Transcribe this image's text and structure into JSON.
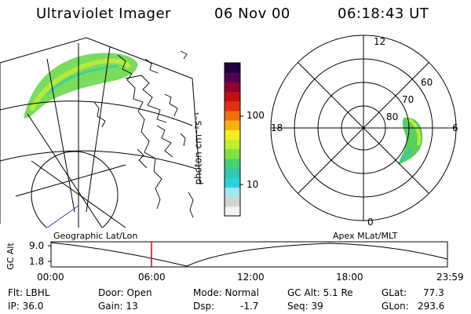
{
  "header": {
    "instrument": "Ultraviolet Imager",
    "date": "06 Nov 00",
    "time": "06:18:43 UT"
  },
  "colorbar": {
    "unit_label": "photon cm⁻²s⁻¹",
    "ticks": [
      "100",
      "10"
    ],
    "colors": [
      "#f4f4f4",
      "#d2d2d2",
      "#9ee8f0",
      "#28d2d8",
      "#30c8b0",
      "#48d070",
      "#80e040",
      "#c0ec30",
      "#f0f020",
      "#f8b010",
      "#f07010",
      "#e03010",
      "#c01010",
      "#900030",
      "#500050",
      "#200040"
    ]
  },
  "polar_plot": {
    "mlt_labels": {
      "top": "12",
      "right": "6",
      "bottom": "0",
      "left": "18"
    },
    "lat_labels": [
      "60",
      "70",
      "80"
    ]
  },
  "timeline": {
    "left_label": "Geographic Lat/Lon",
    "right_label": "Apex MLat/MLT",
    "y_axis_label": "GC Alt",
    "y_ticks": [
      "9.0",
      "1.8"
    ],
    "x_ticks": [
      "00:00",
      "06:00",
      "12:00",
      "18:00",
      "23:59"
    ],
    "marker_color": "#e00000"
  },
  "status": {
    "row1": {
      "flt": "Flt: LBHL",
      "door": "Door: Open",
      "mode": "Mode: Normal",
      "gc_alt": "GC Alt: 5.1 Re",
      "glat": "GLat:",
      "glat_value": "77.3"
    },
    "row2": {
      "ip": "IP: 36.0",
      "gain": "Gain: 13",
      "dsp": "Dsp:",
      "dsp_value": "-1.7",
      "seq": "Seq: 39",
      "glon": "GLon:",
      "glon_value": "293.6"
    }
  }
}
